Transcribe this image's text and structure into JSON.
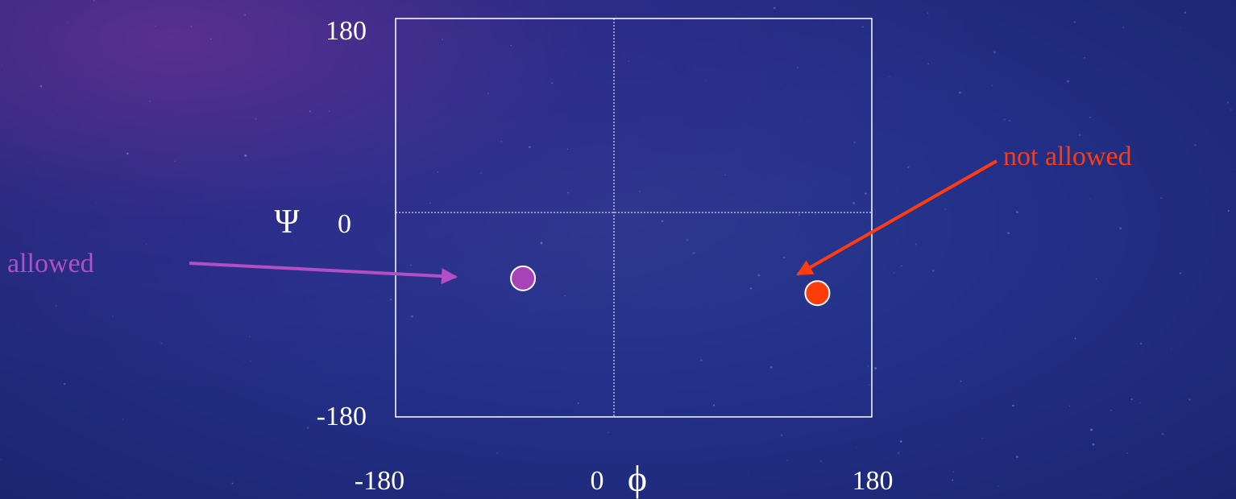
{
  "chart_data": {
    "type": "scatter",
    "xlabel": "ϕ",
    "ylabel": "Ψ",
    "xlim": [
      -180,
      180
    ],
    "ylim": [
      -180,
      180
    ],
    "x_ticks": [
      {
        "value": -180,
        "label": "-180"
      },
      {
        "value": 0,
        "label": "0"
      },
      {
        "value": 180,
        "label": "180"
      }
    ],
    "y_ticks": [
      {
        "value": 180,
        "label": "180"
      },
      {
        "value": 0,
        "label": "0"
      },
      {
        "value": -180,
        "label": "-180"
      }
    ],
    "grid": "dotted lines at x=0 and y=0",
    "points": [
      {
        "label": "allowed",
        "x": -75,
        "y": -58,
        "color": "#a742b9"
      },
      {
        "label": "not allowed",
        "x": 142,
        "y": -71,
        "color": "#ff3c0a"
      }
    ],
    "annotations": [
      {
        "text": "allowed",
        "color": "#b24fc4",
        "points_to": 0
      },
      {
        "text": "not allowed",
        "color": "#ff3c10",
        "points_to": 1
      }
    ]
  }
}
